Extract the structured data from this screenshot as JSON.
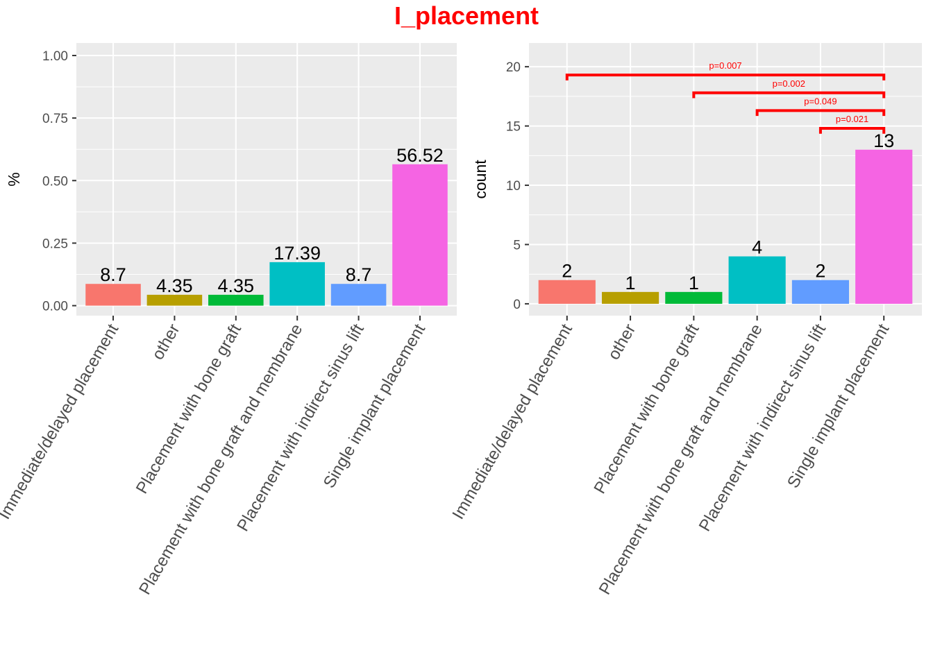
{
  "title": "I_placement",
  "colors": {
    "title": "#ff0000",
    "panel_bg": "#ebebeb",
    "grid": "#ffffff",
    "bracket": "#ff0000",
    "bars": [
      "#f8766d",
      "#b79f00",
      "#00ba38",
      "#00bfc4",
      "#619cff",
      "#f564e3"
    ]
  },
  "chart_data": [
    {
      "type": "bar",
      "categories": [
        "Immediate/delayed placement",
        "other",
        "Placement with bone graft",
        "Placement with bone graft and membrane",
        "Placement with indirect sinus lift",
        "Single implant placement"
      ],
      "values": [
        0.087,
        0.0435,
        0.0435,
        0.1739,
        0.087,
        0.5652
      ],
      "data_labels": [
        "8.7",
        "4.35",
        "4.35",
        "17.39",
        "8.7",
        "56.52"
      ],
      "xlabel": "",
      "ylabel": "%",
      "ylim": [
        -0.04,
        1.05
      ],
      "yticks": [
        0,
        0.25,
        0.5,
        0.75,
        1.0
      ],
      "ytick_labels": [
        "0.00",
        "0.25",
        "0.50",
        "0.75",
        "1.00"
      ],
      "grid": true,
      "legend": "none"
    },
    {
      "type": "bar",
      "categories": [
        "Immediate/delayed placement",
        "other",
        "Placement with bone graft",
        "Placement with bone graft and membrane",
        "Placement with indirect sinus lift",
        "Single implant placement"
      ],
      "values": [
        2,
        1,
        1,
        4,
        2,
        13
      ],
      "data_labels": [
        "2",
        "1",
        "1",
        "4",
        "2",
        "13"
      ],
      "xlabel": "",
      "ylabel": "count",
      "ylim": [
        -1.0,
        22.0
      ],
      "yticks": [
        0,
        5,
        10,
        15,
        20
      ],
      "ytick_labels": [
        "0",
        "5",
        "10",
        "15",
        "20"
      ],
      "grid": true,
      "legend": "none",
      "annotations": [
        {
          "from": 0,
          "to": 5,
          "y": 19.3,
          "label": "p=0.007"
        },
        {
          "from": 2,
          "to": 5,
          "y": 17.8,
          "label": "p=0.002"
        },
        {
          "from": 3,
          "to": 5,
          "y": 16.3,
          "label": "p=0.049"
        },
        {
          "from": 4,
          "to": 5,
          "y": 14.8,
          "label": "p=0.021"
        }
      ]
    }
  ]
}
